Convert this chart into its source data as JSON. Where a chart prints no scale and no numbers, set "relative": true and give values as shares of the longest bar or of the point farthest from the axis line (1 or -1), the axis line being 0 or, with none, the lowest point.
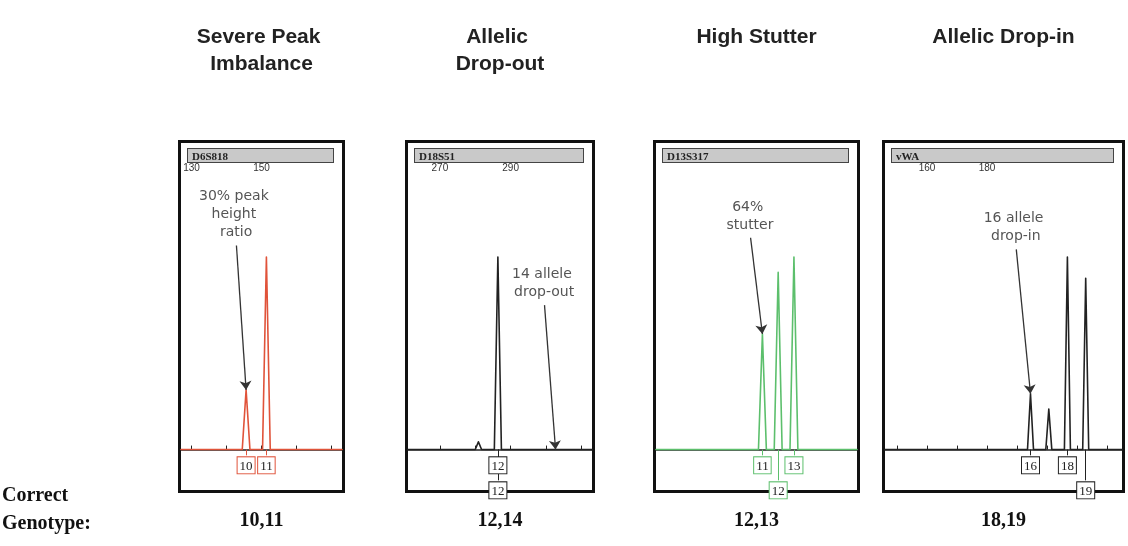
{
  "chart_data": [
    {
      "type": "line",
      "title": "Severe Peak Imbalance",
      "subtitle": "D6S818",
      "relative": true,
      "marker": "none",
      "line_style": "solid",
      "x": [
        127,
        144.5,
        145.6,
        146.7,
        150.3,
        151.4,
        152.5,
        173
      ],
      "series": [
        {
          "color": "#e0533a",
          "values": [
            0,
            0,
            0.31,
            0,
            0,
            1,
            0,
            0
          ]
        }
      ],
      "xlim": [
        127,
        173
      ],
      "xticks": [
        130,
        {
          "value": 140,
          "label": null
        },
        150,
        {
          "value": 160,
          "label": null
        },
        {
          "value": 170,
          "label": null
        }
      ],
      "annotations": [
        {
          "text": "30% peak height ratio",
          "x": 145.6,
          "y": 0.31
        },
        {
          "text": "10",
          "x": 145.6,
          "y": 0
        },
        {
          "text": "11",
          "x": 151.4,
          "y": 0
        },
        "10,11"
      ]
    },
    {
      "type": "line",
      "title": "Allelic Drop-out",
      "subtitle": "D18S51",
      "relative": true,
      "marker": "none",
      "line_style": "solid",
      "x": [
        261,
        280,
        280.9,
        281.8,
        285.4,
        286.4,
        287.4,
        313
      ],
      "series": [
        {
          "color": "#222222",
          "values": [
            0,
            0,
            0.04,
            0,
            0,
            1,
            0,
            0
          ]
        }
      ],
      "xlim": [
        261,
        313
      ],
      "xticks": [
        270,
        {
          "value": 280,
          "label": null
        },
        290,
        {
          "value": 300,
          "label": null
        },
        {
          "value": 310,
          "label": null
        }
      ],
      "annotations": [
        {
          "text": "14 allele drop-out",
          "x": 302.7,
          "y": 0
        },
        {
          "text": "12",
          "x": 286.4,
          "y": 0
        },
        {
          "text": "12",
          "x": 286.4,
          "y": 0
        },
        "12,14"
      ]
    },
    {
      "type": "line",
      "title": "High Stutter",
      "subtitle": "D13S317",
      "relative": true,
      "marker": "none",
      "line_style": "solid",
      "tick_labels": false,
      "categories": [
        null,
        null,
        null,
        null,
        null,
        null,
        null,
        null,
        null,
        null,
        null,
        null,
        null,
        null,
        null,
        null,
        null,
        null,
        null,
        null,
        null,
        null,
        null,
        null,
        null,
        null,
        null,
        null,
        null,
        null,
        null,
        null,
        null,
        null,
        null,
        null,
        null,
        null,
        null,
        null,
        null,
        null,
        null,
        null,
        null,
        null,
        null,
        null,
        null,
        null,
        null,
        null
      ],
      "series": [
        {
          "color": "#5cbf6c",
          "values": [
            0,
            0,
            0,
            0,
            0,
            0,
            0,
            0,
            0,
            0,
            0,
            0,
            0,
            0,
            0,
            0,
            0,
            0,
            0,
            0,
            0,
            0,
            0,
            0,
            0,
            0,
            0,
            0.6,
            0,
            0,
            0,
            0.92,
            0,
            0,
            0,
            1,
            0,
            0,
            0,
            0,
            0,
            0,
            0,
            0,
            0,
            0,
            0,
            0,
            0,
            0,
            0,
            0
          ]
        }
      ],
      "annotations": [
        "64% stutter",
        "11",
        "12",
        "13",
        "12,13"
      ]
    },
    {
      "type": "line",
      "title": "Allelic Drop-in",
      "subtitle": "vWA",
      "relative": true,
      "marker": "none",
      "line_style": "solid",
      "x": [
        146,
        193.5,
        194.5,
        195.5,
        199.6,
        200.6,
        201.6,
        205.8,
        206.8,
        207.8,
        211.9,
        212.9,
        213.9,
        225
      ],
      "series": [
        {
          "color": "#222222",
          "values": [
            0,
            0,
            0.29,
            0,
            0,
            0.21,
            0,
            0,
            1,
            0,
            0,
            0.89,
            0,
            0
          ]
        }
      ],
      "xlim": [
        146,
        225
      ],
      "xticks": [
        {
          "value": 150,
          "label": null
        },
        160,
        {
          "value": 170,
          "label": null
        },
        180,
        {
          "value": 190,
          "label": null
        },
        {
          "value": 200,
          "label": null
        },
        {
          "value": 210,
          "label": null
        },
        {
          "value": 220,
          "label": null
        }
      ],
      "annotations": [
        {
          "text": "16 allele drop-in",
          "x": 194.5,
          "y": 0.29
        },
        {
          "text": "16",
          "x": 194.5,
          "y": 0
        },
        {
          "text": "18",
          "x": 206.8,
          "y": 0
        },
        {
          "text": "19",
          "x": 212.9,
          "y": 0
        },
        "18,19"
      ]
    },
    {
      "type": "other",
      "annotations": [
        "Correct Genotype:"
      ]
    }
  ]
}
